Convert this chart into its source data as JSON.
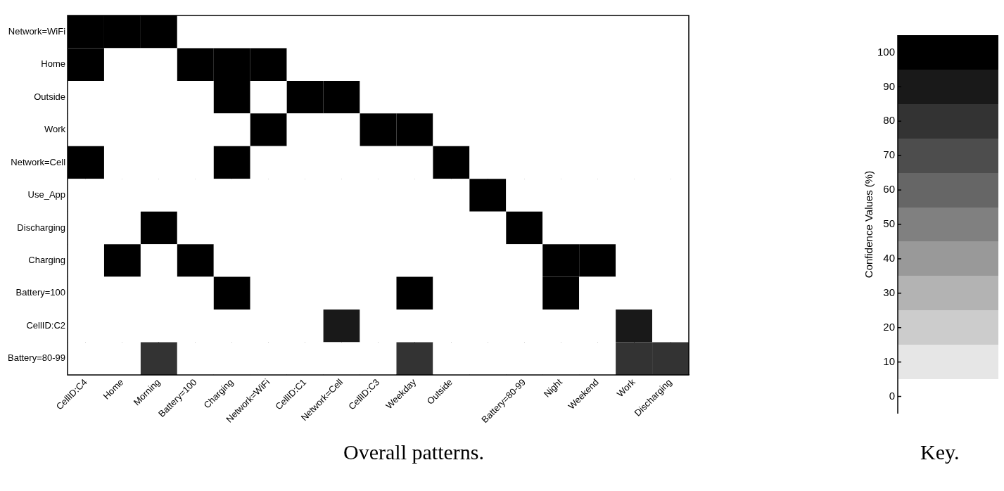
{
  "chart_data": {
    "type": "heatmap",
    "title": "Overall patterns.",
    "clabel": "Confidence Values (%)",
    "annotations": [
      "Key."
    ],
    "categories": [
      "CellID:C4",
      "Home",
      "Morning",
      "Battery=100",
      "Charging",
      "Network=WiFi",
      "CellID:C1",
      "Network=Cell",
      "CellID:C3",
      "Weekday",
      "Outside",
      null,
      "Battery=80-99",
      "Night",
      "Weekend",
      "Work",
      "Discharging"
    ],
    "y_categories": [
      "Network=WiFi",
      "Home",
      "Outside",
      "Work",
      "Network=Cell",
      "Use_App",
      "Discharging",
      "Charging",
      "Battery=100",
      "CellID:C2",
      "Battery=80-99"
    ],
    "cells": [
      [
        100,
        100,
        100,
        0,
        0,
        0,
        0,
        0,
        0,
        0,
        0,
        0,
        0,
        0,
        0,
        0,
        0
      ],
      [
        100,
        0,
        0,
        100,
        100,
        100,
        0,
        0,
        0,
        0,
        0,
        0,
        0,
        0,
        0,
        0,
        0
      ],
      [
        0,
        0,
        0,
        0,
        100,
        0,
        100,
        100,
        0,
        0,
        0,
        0,
        0,
        0,
        0,
        0,
        0
      ],
      [
        0,
        0,
        0,
        0,
        0,
        100,
        0,
        0,
        100,
        100,
        0,
        0,
        0,
        0,
        0,
        0,
        0
      ],
      [
        100,
        0,
        0,
        0,
        100,
        0,
        0,
        0,
        0,
        0,
        100,
        0,
        0,
        0,
        0,
        0,
        0
      ],
      [
        0,
        0,
        0,
        0,
        0,
        0,
        0,
        0,
        0,
        0,
        0,
        100,
        0,
        0,
        0,
        0,
        0
      ],
      [
        0,
        0,
        100,
        0,
        0,
        0,
        0,
        0,
        0,
        0,
        0,
        0,
        100,
        0,
        0,
        0,
        0
      ],
      [
        0,
        100,
        0,
        100,
        0,
        0,
        0,
        0,
        0,
        0,
        0,
        0,
        0,
        100,
        100,
        0,
        0
      ],
      [
        0,
        0,
        0,
        0,
        100,
        0,
        0,
        0,
        0,
        100,
        0,
        0,
        0,
        100,
        0,
        0,
        0
      ],
      [
        0,
        0,
        0,
        0,
        0,
        0,
        0,
        90,
        0,
        0,
        0,
        0,
        0,
        0,
        0,
        90,
        0
      ],
      [
        0,
        0,
        80,
        0,
        0,
        0,
        0,
        0,
        0,
        80,
        0,
        0,
        0,
        0,
        0,
        80,
        80
      ]
    ],
    "clim": [
      -5,
      105
    ],
    "cticks": [
      0,
      10,
      20,
      30,
      40,
      50,
      60,
      70,
      80,
      90,
      100
    ],
    "grid": true
  }
}
